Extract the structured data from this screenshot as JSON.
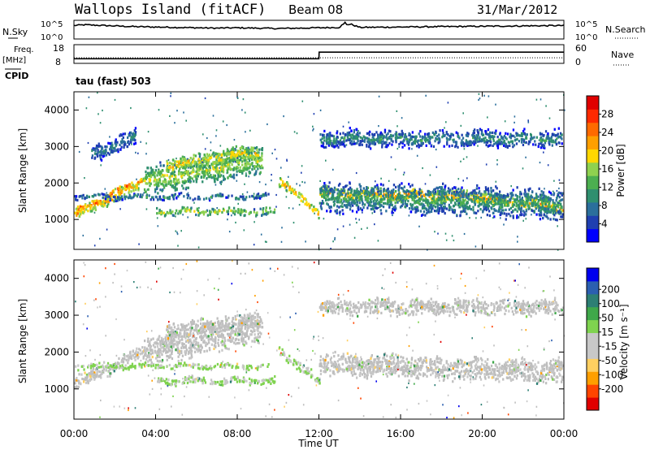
{
  "header": {
    "site": "Wallops Island (fitACF)",
    "beam": "Beam 08",
    "date": "31/Mar/2012"
  },
  "noise_panel": {
    "left_label": "N.Sky",
    "right_label": "N.Search",
    "left_ticks": [
      "10^5",
      "10^0"
    ],
    "right_ticks": [
      "10^5",
      "10^0"
    ]
  },
  "freq_panel": {
    "left_label_line1": "Freq.",
    "left_label_line2": "[MHz]",
    "left_ticks": [
      "18",
      "8"
    ],
    "right_label": "Nave",
    "right_ticks": [
      "60",
      "0"
    ],
    "cpid_label": "CPID",
    "mode": "tau (fast) 503"
  },
  "colors": {
    "power_scale": [
      "#0000ff",
      "#1f3fb0",
      "#2b6f9c",
      "#2f8f6f",
      "#4caf50",
      "#8fd14f",
      "#ffd700",
      "#ff9f00",
      "#ff6a00",
      "#ff2a00",
      "#e00000"
    ],
    "velocity_scale": [
      "#e00000",
      "#ff4500",
      "#ff9f00",
      "#ffcf60",
      "#c8c8c8",
      "#c8c8c8",
      "#7fd34f",
      "#3fa84a",
      "#2d7f74",
      "#2b5fb0",
      "#0000ee"
    ],
    "ground_scatter": "#bebebe"
  },
  "chart_data": [
    {
      "type": "line",
      "title": "N.Sky / N.Search",
      "x_hours": [
        0,
        0.5,
        1,
        1.5,
        2,
        3,
        4,
        5,
        6,
        7,
        8,
        9,
        10,
        11,
        12,
        13,
        13.3,
        14,
        16,
        18,
        20,
        22,
        24
      ],
      "series": [
        {
          "name": "N.Sky",
          "values": [
            3.6,
            3.8,
            3.7,
            3.6,
            3.5,
            3.3,
            3.2,
            3.1,
            3.0,
            2.9,
            3.0,
            2.9,
            2.8,
            2.9,
            3.0,
            3.1,
            4.5,
            3.1,
            3.2,
            3.3,
            3.4,
            3.5,
            3.6
          ]
        }
      ],
      "ylim": [
        0,
        5
      ]
    },
    {
      "type": "line",
      "title": "Freq / Nave",
      "x_hours": [
        0,
        12,
        12.01,
        24
      ],
      "series": [
        {
          "name": "Freq.",
          "values": [
            10.5,
            10.5,
            14,
            14
          ]
        },
        {
          "name": "Nave",
          "values": [
            11,
            11,
            11,
            11
          ]
        }
      ],
      "ylim": [
        8,
        18
      ]
    },
    {
      "type": "heatmap",
      "title": "Power",
      "xlabel": "",
      "ylabel": "Slant Range [km]",
      "colorbar_label": "Power [dB]",
      "colorbar_ticks": [
        "28",
        "24",
        "20",
        "16",
        "12",
        "8",
        "4"
      ],
      "colorbar_range": [
        0,
        32
      ],
      "y_ticks": [
        "4000",
        "3000",
        "2000",
        "1000"
      ],
      "ylim": [
        180,
        4500
      ],
      "xlim": [
        0,
        24
      ],
      "regions": [
        {
          "t0": 0.0,
          "t1": 3.4,
          "r_start": 1150,
          "r_end": 2050,
          "width": 260,
          "level": 22
        },
        {
          "t0": 0.0,
          "t1": 3.4,
          "r_start": 1250,
          "r_end": 2150,
          "width": 120,
          "level": 27
        },
        {
          "t0": 3.4,
          "t1": 9.2,
          "r_start": 2050,
          "r_end": 2700,
          "width": 650,
          "level": 17
        },
        {
          "t0": 4.5,
          "t1": 9.0,
          "r_start": 2500,
          "r_end": 2900,
          "width": 350,
          "level": 20
        },
        {
          "t0": 4.0,
          "t1": 9.8,
          "r_start": 1250,
          "r_end": 1250,
          "width": 160,
          "level": 17
        },
        {
          "t0": 0.0,
          "t1": 9.5,
          "r_start": 1650,
          "r_end": 1650,
          "width": 120,
          "level": 10
        },
        {
          "t0": 0.8,
          "t1": 3.0,
          "r_start": 2800,
          "r_end": 3300,
          "width": 400,
          "level": 9
        },
        {
          "t0": 10.0,
          "t1": 12.0,
          "r_start": 2100,
          "r_end": 1200,
          "width": 220,
          "level": 22
        },
        {
          "t0": 12.0,
          "t1": 20.0,
          "r_start": 1750,
          "r_end": 1650,
          "width": 260,
          "level": 23
        },
        {
          "t0": 20.0,
          "t1": 24.0,
          "r_start": 1600,
          "r_end": 1350,
          "width": 260,
          "level": 23
        },
        {
          "t0": 12.0,
          "t1": 24.0,
          "r_start": 1650,
          "r_end": 1450,
          "width": 650,
          "level": 12
        },
        {
          "t0": 12.0,
          "t1": 24.0,
          "r_start": 3250,
          "r_end": 3250,
          "width": 380,
          "level": 10
        }
      ]
    },
    {
      "type": "heatmap",
      "title": "Velocity",
      "xlabel": "Time UT",
      "ylabel": "Slant Range [km]",
      "colorbar_label": "Velocity [m s⁻¹]",
      "colorbar_ticks": [
        "200",
        "100",
        "50",
        "15",
        "-15",
        "-50",
        "-100",
        "-200"
      ],
      "colorbar_range": [
        -250,
        250
      ],
      "x_ticks": [
        "00:00",
        "04:00",
        "08:00",
        "12:00",
        "16:00",
        "20:00",
        "00:00"
      ],
      "y_ticks": [
        "4000",
        "3000",
        "2000",
        "1000"
      ],
      "ylim": [
        180,
        4500
      ],
      "xlim": [
        0,
        24
      ],
      "regions": [
        {
          "t0": 0.0,
          "t1": 3.4,
          "r_start": 1150,
          "r_end": 2050,
          "width": 300,
          "level": 0
        },
        {
          "t0": 3.4,
          "t1": 9.2,
          "r_start": 2050,
          "r_end": 2700,
          "width": 650,
          "level": 0
        },
        {
          "t0": 4.5,
          "t1": 9.0,
          "r_start": 2600,
          "r_end": 2900,
          "width": 350,
          "level": 0
        },
        {
          "t0": 4.0,
          "t1": 9.8,
          "r_start": 1250,
          "r_end": 1250,
          "width": 160,
          "level": 30
        },
        {
          "t0": 0.0,
          "t1": 9.5,
          "r_start": 1650,
          "r_end": 1650,
          "width": 120,
          "level": 35
        },
        {
          "t0": 10.0,
          "t1": 12.0,
          "r_start": 2100,
          "r_end": 1200,
          "width": 220,
          "level": 30
        },
        {
          "t0": 12.0,
          "t1": 24.0,
          "r_start": 1700,
          "r_end": 1500,
          "width": 500,
          "level": 0
        },
        {
          "t0": 12.0,
          "t1": 24.0,
          "r_start": 3250,
          "r_end": 3250,
          "width": 350,
          "level": 0
        }
      ]
    }
  ]
}
